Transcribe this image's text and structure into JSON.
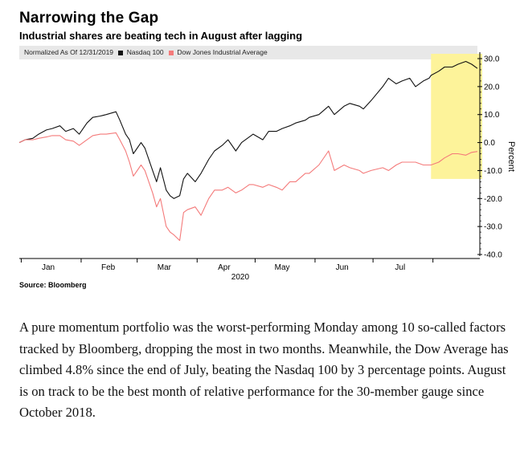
{
  "chart_data": {
    "type": "line",
    "title": "Narrowing the Gap",
    "subtitle": "Industrial shares are beating tech in August after lagging",
    "legend_note": "Normalized As Of 12/31/2019",
    "ylabel": "Percent",
    "year_label": "2020",
    "source": "Source: Bloomberg",
    "x_start": "2019-12-31",
    "x_end": "2020-08-24",
    "ylim": [
      -40,
      30
    ],
    "yticks": [
      30,
      20,
      10,
      0,
      -10,
      -20,
      -30,
      -40
    ],
    "ytick_labels": [
      "30.0",
      "20.0",
      "10.0",
      "0.0",
      "-10.0",
      "-20.0",
      "-30.0",
      "-40.0"
    ],
    "xticks": [
      {
        "label": "Jan",
        "date": "2020-01-15"
      },
      {
        "label": "Feb",
        "date": "2020-02-15"
      },
      {
        "label": "Mar",
        "date": "2020-03-15"
      },
      {
        "label": "Apr",
        "date": "2020-04-15"
      },
      {
        "label": "May",
        "date": "2020-05-15"
      },
      {
        "label": "Jun",
        "date": "2020-06-15"
      },
      {
        "label": "Jul",
        "date": "2020-07-15"
      }
    ],
    "grid": false,
    "legend_position": "top-left",
    "highlight": {
      "from": "2020-07-31",
      "to": "2020-08-24",
      "color": "#fdf39a"
    },
    "series": [
      {
        "name": "Nasdaq 100",
        "color": "#111111",
        "points": [
          [
            "2019-12-31",
            0
          ],
          [
            "2020-01-03",
            1
          ],
          [
            "2020-01-07",
            1.5
          ],
          [
            "2020-01-10",
            3
          ],
          [
            "2020-01-14",
            4.5
          ],
          [
            "2020-01-17",
            5
          ],
          [
            "2020-01-21",
            6
          ],
          [
            "2020-01-24",
            4
          ],
          [
            "2020-01-28",
            5
          ],
          [
            "2020-01-31",
            3
          ],
          [
            "2020-02-04",
            7
          ],
          [
            "2020-02-07",
            9
          ],
          [
            "2020-02-11",
            9.5
          ],
          [
            "2020-02-14",
            10
          ],
          [
            "2020-02-19",
            11
          ],
          [
            "2020-02-21",
            8
          ],
          [
            "2020-02-24",
            3
          ],
          [
            "2020-02-26",
            1
          ],
          [
            "2020-02-28",
            -4
          ],
          [
            "2020-03-03",
            0
          ],
          [
            "2020-03-05",
            -2
          ],
          [
            "2020-03-09",
            -10
          ],
          [
            "2020-03-11",
            -14
          ],
          [
            "2020-03-13",
            -9
          ],
          [
            "2020-03-16",
            -17
          ],
          [
            "2020-03-18",
            -19
          ],
          [
            "2020-03-20",
            -20
          ],
          [
            "2020-03-23",
            -19
          ],
          [
            "2020-03-25",
            -13
          ],
          [
            "2020-03-27",
            -11
          ],
          [
            "2020-03-31",
            -14
          ],
          [
            "2020-04-03",
            -11
          ],
          [
            "2020-04-07",
            -6
          ],
          [
            "2020-04-10",
            -3
          ],
          [
            "2020-04-14",
            -1
          ],
          [
            "2020-04-17",
            1
          ],
          [
            "2020-04-21",
            -3
          ],
          [
            "2020-04-24",
            0
          ],
          [
            "2020-04-28",
            2
          ],
          [
            "2020-04-30",
            3
          ],
          [
            "2020-05-05",
            1
          ],
          [
            "2020-05-08",
            4
          ],
          [
            "2020-05-12",
            4
          ],
          [
            "2020-05-15",
            5
          ],
          [
            "2020-05-19",
            6
          ],
          [
            "2020-05-22",
            7
          ],
          [
            "2020-05-27",
            8
          ],
          [
            "2020-05-29",
            9
          ],
          [
            "2020-06-03",
            10
          ],
          [
            "2020-06-08",
            13
          ],
          [
            "2020-06-11",
            10
          ],
          [
            "2020-06-16",
            13
          ],
          [
            "2020-06-19",
            14
          ],
          [
            "2020-06-24",
            13
          ],
          [
            "2020-06-26",
            12
          ],
          [
            "2020-06-30",
            15
          ],
          [
            "2020-07-06",
            20
          ],
          [
            "2020-07-09",
            23
          ],
          [
            "2020-07-13",
            21
          ],
          [
            "2020-07-16",
            22
          ],
          [
            "2020-07-20",
            23
          ],
          [
            "2020-07-23",
            20
          ],
          [
            "2020-07-27",
            22
          ],
          [
            "2020-07-30",
            23
          ],
          [
            "2020-07-31",
            24
          ],
          [
            "2020-08-04",
            25.5
          ],
          [
            "2020-08-07",
            27
          ],
          [
            "2020-08-11",
            27
          ],
          [
            "2020-08-14",
            28
          ],
          [
            "2020-08-18",
            29
          ],
          [
            "2020-08-21",
            28
          ],
          [
            "2020-08-24",
            26.5
          ]
        ]
      },
      {
        "name": "Dow Jones Industrial Average",
        "color": "#f47a7a",
        "points": [
          [
            "2019-12-31",
            0
          ],
          [
            "2020-01-03",
            1
          ],
          [
            "2020-01-07",
            1
          ],
          [
            "2020-01-10",
            1.5
          ],
          [
            "2020-01-14",
            2
          ],
          [
            "2020-01-17",
            2.5
          ],
          [
            "2020-01-21",
            2.5
          ],
          [
            "2020-01-24",
            1
          ],
          [
            "2020-01-28",
            0.5
          ],
          [
            "2020-01-31",
            -1
          ],
          [
            "2020-02-04",
            1
          ],
          [
            "2020-02-07",
            2.5
          ],
          [
            "2020-02-11",
            3
          ],
          [
            "2020-02-14",
            3
          ],
          [
            "2020-02-19",
            3.5
          ],
          [
            "2020-02-21",
            1
          ],
          [
            "2020-02-24",
            -3
          ],
          [
            "2020-02-26",
            -7
          ],
          [
            "2020-02-28",
            -12
          ],
          [
            "2020-03-03",
            -8
          ],
          [
            "2020-03-05",
            -10
          ],
          [
            "2020-03-09",
            -18
          ],
          [
            "2020-03-11",
            -23
          ],
          [
            "2020-03-13",
            -20
          ],
          [
            "2020-03-16",
            -30
          ],
          [
            "2020-03-18",
            -32
          ],
          [
            "2020-03-20",
            -33
          ],
          [
            "2020-03-23",
            -35
          ],
          [
            "2020-03-25",
            -25
          ],
          [
            "2020-03-27",
            -24
          ],
          [
            "2020-03-31",
            -23
          ],
          [
            "2020-04-03",
            -26
          ],
          [
            "2020-04-07",
            -20
          ],
          [
            "2020-04-10",
            -17
          ],
          [
            "2020-04-14",
            -17
          ],
          [
            "2020-04-17",
            -16
          ],
          [
            "2020-04-21",
            -18
          ],
          [
            "2020-04-24",
            -17
          ],
          [
            "2020-04-28",
            -15
          ],
          [
            "2020-04-30",
            -15
          ],
          [
            "2020-05-05",
            -16
          ],
          [
            "2020-05-08",
            -15
          ],
          [
            "2020-05-12",
            -16
          ],
          [
            "2020-05-15",
            -17
          ],
          [
            "2020-05-19",
            -14
          ],
          [
            "2020-05-22",
            -14
          ],
          [
            "2020-05-27",
            -11
          ],
          [
            "2020-05-29",
            -11
          ],
          [
            "2020-06-03",
            -8
          ],
          [
            "2020-06-08",
            -3
          ],
          [
            "2020-06-11",
            -10
          ],
          [
            "2020-06-16",
            -8
          ],
          [
            "2020-06-19",
            -9
          ],
          [
            "2020-06-24",
            -10
          ],
          [
            "2020-06-26",
            -11
          ],
          [
            "2020-06-30",
            -10
          ],
          [
            "2020-07-06",
            -9
          ],
          [
            "2020-07-09",
            -10
          ],
          [
            "2020-07-13",
            -8
          ],
          [
            "2020-07-16",
            -7
          ],
          [
            "2020-07-20",
            -7
          ],
          [
            "2020-07-23",
            -7
          ],
          [
            "2020-07-27",
            -8
          ],
          [
            "2020-07-30",
            -8
          ],
          [
            "2020-07-31",
            -8
          ],
          [
            "2020-08-04",
            -7
          ],
          [
            "2020-08-07",
            -5.5
          ],
          [
            "2020-08-11",
            -4
          ],
          [
            "2020-08-14",
            -4
          ],
          [
            "2020-08-18",
            -4.5
          ],
          [
            "2020-08-21",
            -3.5
          ],
          [
            "2020-08-24",
            -3.2
          ]
        ]
      }
    ]
  },
  "article": {
    "paragraph": "A pure momentum portfolio was the worst-performing Monday among 10 so-called factors tracked by Bloomberg, dropping the most in two months. Meanwhile, the Dow Average has climbed 4.8% since the end of July, beating the Nasdaq 100 by 3 percentage points. August is on track to be the best month of relative performance for the 30-member gauge since October 2018."
  }
}
